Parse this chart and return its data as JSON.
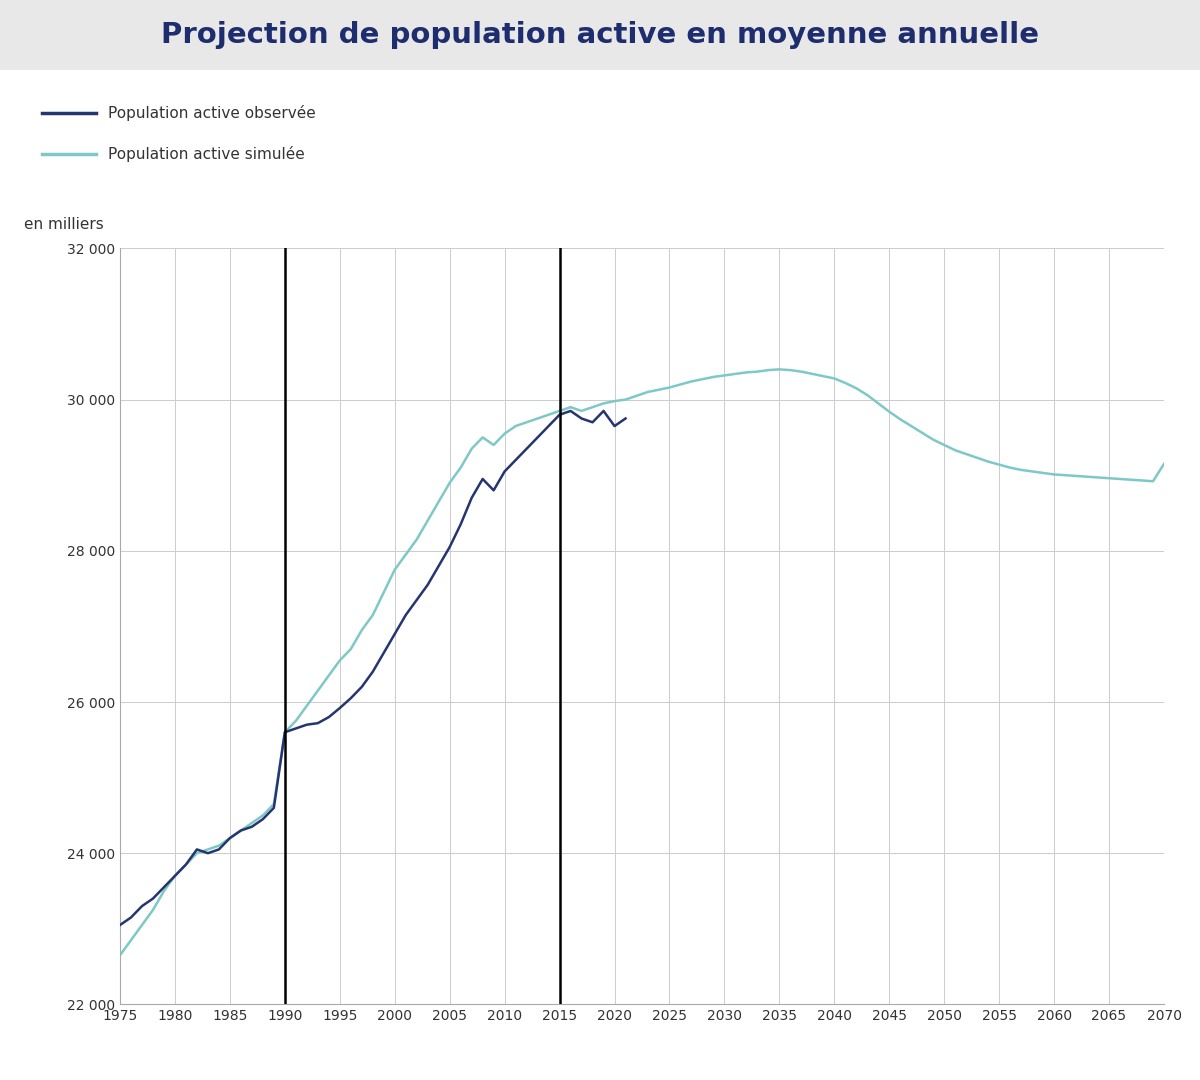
{
  "title": "Projection de population active en moyenne annuelle",
  "title_bg_color": "#e8e8e8",
  "bg_color": "#ffffff",
  "ylabel": "en milliers",
  "legend_observed": "Population active observée",
  "legend_simulated": "Population active simulée",
  "color_observed": "#253570",
  "color_simulated": "#7ec8c8",
  "vline1": 1990,
  "vline2": 2015,
  "ylim": [
    22000,
    32000
  ],
  "xlim": [
    1975,
    2070
  ],
  "yticks": [
    22000,
    24000,
    26000,
    28000,
    30000,
    32000
  ],
  "xticks": [
    1975,
    1980,
    1985,
    1990,
    1995,
    2000,
    2005,
    2010,
    2015,
    2020,
    2025,
    2030,
    2035,
    2040,
    2045,
    2050,
    2055,
    2060,
    2065,
    2070
  ],
  "observed_years": [
    1975,
    1976,
    1977,
    1978,
    1979,
    1980,
    1981,
    1982,
    1983,
    1984,
    1985,
    1986,
    1987,
    1988,
    1989,
    1990,
    1991,
    1992,
    1993,
    1994,
    1995,
    1996,
    1997,
    1998,
    1999,
    2000,
    2001,
    2002,
    2003,
    2004,
    2005,
    2006,
    2007,
    2008,
    2009,
    2010,
    2011,
    2012,
    2013,
    2014,
    2015,
    2016,
    2017,
    2018,
    2019,
    2020,
    2021
  ],
  "observed_values": [
    23050,
    23150,
    23300,
    23400,
    23550,
    23700,
    23850,
    24050,
    24000,
    24050,
    24200,
    24300,
    24350,
    24450,
    24600,
    25600,
    25650,
    25700,
    25720,
    25800,
    25920,
    26050,
    26200,
    26400,
    26650,
    26900,
    27150,
    27350,
    27550,
    27800,
    28050,
    28350,
    28700,
    28950,
    28800,
    29050,
    29200,
    29350,
    29500,
    29650,
    29800,
    29850,
    29750,
    29700,
    29850,
    29650,
    29750
  ],
  "simulated_years": [
    1975,
    1976,
    1977,
    1978,
    1979,
    1980,
    1981,
    1982,
    1983,
    1984,
    1985,
    1986,
    1987,
    1988,
    1989,
    1990,
    1991,
    1992,
    1993,
    1994,
    1995,
    1996,
    1997,
    1998,
    1999,
    2000,
    2001,
    2002,
    2003,
    2004,
    2005,
    2006,
    2007,
    2008,
    2009,
    2010,
    2011,
    2012,
    2013,
    2014,
    2015,
    2016,
    2017,
    2018,
    2019,
    2020,
    2021,
    2022,
    2023,
    2024,
    2025,
    2026,
    2027,
    2028,
    2029,
    2030,
    2031,
    2032,
    2033,
    2034,
    2035,
    2036,
    2037,
    2038,
    2039,
    2040,
    2041,
    2042,
    2043,
    2044,
    2045,
    2046,
    2047,
    2048,
    2049,
    2050,
    2051,
    2052,
    2053,
    2054,
    2055,
    2056,
    2057,
    2058,
    2059,
    2060,
    2061,
    2062,
    2063,
    2064,
    2065,
    2066,
    2067,
    2068,
    2069,
    2070
  ],
  "simulated_values": [
    22650,
    22850,
    23050,
    23250,
    23500,
    23700,
    23850,
    24000,
    24050,
    24100,
    24200,
    24300,
    24400,
    24500,
    24650,
    25600,
    25750,
    25950,
    26150,
    26350,
    26550,
    26700,
    26950,
    27150,
    27450,
    27750,
    27950,
    28150,
    28400,
    28650,
    28900,
    29100,
    29350,
    29500,
    29400,
    29550,
    29650,
    29700,
    29750,
    29800,
    29850,
    29900,
    29850,
    29900,
    29950,
    29980,
    30000,
    30050,
    30100,
    30130,
    30160,
    30200,
    30240,
    30270,
    30300,
    30320,
    30340,
    30360,
    30370,
    30390,
    30400,
    30390,
    30370,
    30340,
    30310,
    30280,
    30220,
    30150,
    30060,
    29950,
    29840,
    29740,
    29650,
    29560,
    29470,
    29400,
    29330,
    29280,
    29230,
    29180,
    29140,
    29100,
    29070,
    29050,
    29030,
    29010,
    29000,
    28990,
    28980,
    28970,
    28960,
    28950,
    28940,
    28930,
    28920,
    29150
  ]
}
